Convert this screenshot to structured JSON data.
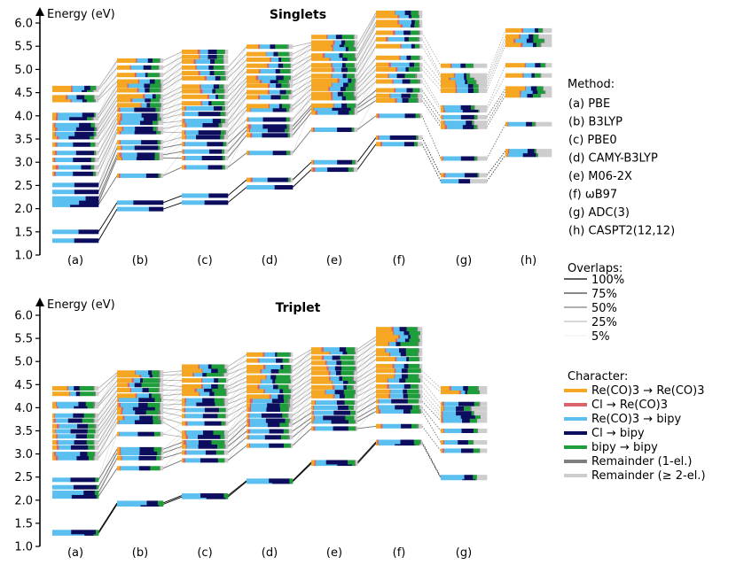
{
  "chart_data": [
    {
      "type": "bar",
      "title": "Singlets",
      "ylabel": "Energy (eV)",
      "ylim": [
        1.0,
        6.2
      ],
      "yticks": [
        "1.0",
        "1.5",
        "2.0",
        "2.5",
        "3.0",
        "3.5",
        "4.0",
        "4.5",
        "5.0",
        "5.5",
        "6.0"
      ],
      "categories": [
        "(a)",
        "(b)",
        "(c)",
        "(d)",
        "(e)",
        "(f)",
        "(g)",
        "(h)"
      ],
      "states": [
        [
          1.31,
          1.5,
          2.08,
          2.13,
          2.22,
          2.36,
          2.51,
          2.75,
          2.89,
          3.05,
          3.2,
          3.38,
          3.54,
          3.61,
          3.72,
          3.8,
          3.95,
          4.02,
          4.34,
          4.4,
          4.56,
          4.6
        ],
        [
          1.99,
          2.13,
          2.71,
          3.09,
          3.16,
          3.31,
          3.43,
          3.65,
          3.72,
          3.85,
          3.94,
          4.01,
          4.13,
          4.23,
          4.34,
          4.42,
          4.55,
          4.65,
          4.74,
          4.88,
          5.04,
          5.19
        ],
        [
          2.13,
          2.28,
          2.89,
          3.09,
          3.23,
          3.39,
          3.54,
          3.64,
          3.8,
          3.89,
          4.04,
          4.16,
          4.27,
          4.41,
          4.53,
          4.63,
          4.81,
          4.92,
          5.04,
          5.17,
          5.27,
          5.38
        ],
        [
          2.46,
          2.62,
          3.2,
          3.58,
          3.69,
          3.77,
          3.92,
          4.13,
          4.21,
          4.4,
          4.51,
          4.65,
          4.75,
          4.82,
          4.96,
          5.08,
          5.21,
          5.33,
          5.49
        ],
        [
          2.84,
          3.0,
          3.7,
          4.07,
          4.16,
          4.22,
          4.38,
          4.47,
          4.58,
          4.67,
          4.76,
          4.86,
          4.99,
          5.09,
          5.23,
          5.3,
          5.44,
          5.53,
          5.58,
          5.7
        ],
        [
          3.39,
          3.53,
          4.0,
          4.33,
          4.43,
          4.55,
          4.74,
          4.86,
          5.0,
          5.1,
          5.25,
          5.5,
          5.65,
          5.79,
          5.95,
          6.02,
          6.15,
          6.22
        ],
        [
          2.59,
          2.72,
          3.08,
          3.76,
          3.85,
          3.97,
          4.12,
          4.18,
          4.54,
          4.64,
          4.73,
          4.82,
          4.87,
          5.08
        ],
        [
          3.16,
          3.24,
          3.82,
          4.44,
          4.52,
          4.59,
          4.87,
          5.09,
          5.53,
          5.62,
          5.71,
          5.84
        ]
      ]
    },
    {
      "type": "bar",
      "title": "Triplet",
      "ylabel": "Energy (eV)",
      "ylim": [
        1.0,
        6.2
      ],
      "yticks": [
        "1.0",
        "1.5",
        "2.0",
        "2.5",
        "3.0",
        "3.5",
        "4.0",
        "4.5",
        "5.0",
        "5.5",
        "6.0"
      ],
      "categories": [
        "(a)",
        "(b)",
        "(c)",
        "(d)",
        "(e)",
        "(f)",
        "(g)"
      ],
      "states": [
        [
          1.28,
          1.31,
          2.08,
          2.16,
          2.28,
          2.44,
          2.91,
          3.0,
          3.14,
          3.25,
          3.38,
          3.49,
          3.6,
          3.72,
          3.83,
          4.03,
          4.08,
          4.3,
          4.42
        ],
        [
          1.91,
          1.94,
          2.69,
          2.91,
          3.02,
          3.1,
          3.43,
          3.69,
          3.78,
          3.9,
          3.99,
          4.06,
          4.17,
          4.26,
          4.38,
          4.49,
          4.59,
          4.7,
          4.76
        ],
        [
          2.07,
          2.1,
          2.86,
          3.03,
          3.16,
          3.25,
          3.37,
          3.46,
          3.66,
          3.82,
          3.95,
          4.08,
          4.16,
          4.3,
          4.39,
          4.46,
          4.59,
          4.72,
          4.8,
          4.89
        ],
        [
          2.4,
          2.42,
          3.18,
          3.36,
          3.49,
          3.63,
          3.72,
          3.83,
          3.96,
          4.05,
          4.15,
          4.24,
          4.36,
          4.45,
          4.57,
          4.66,
          4.79,
          4.88,
          5.02,
          5.15
        ],
        [
          2.79,
          2.82,
          3.55,
          3.7,
          3.78,
          3.89,
          4.0,
          4.11,
          4.25,
          4.34,
          4.44,
          4.56,
          4.63,
          4.75,
          4.85,
          4.97,
          5.08,
          5.2,
          5.26
        ],
        [
          3.23,
          3.26,
          3.6,
          3.92,
          4.01,
          4.14,
          4.25,
          4.35,
          4.46,
          4.59,
          4.68,
          4.8,
          4.9,
          5.05,
          5.16,
          5.24,
          5.38,
          5.47,
          5.54,
          5.62,
          5.7
        ],
        [
          2.48,
          2.5,
          3.07,
          3.25,
          3.5,
          3.72,
          3.81,
          3.88,
          3.98,
          4.08,
          4.34,
          4.42
        ]
      ]
    }
  ],
  "legend": {
    "method_header": "Method:",
    "methods": [
      "(a) PBE",
      "(b) B3LYP",
      "(c) PBE0",
      "(d) CAMY-B3LYP",
      "(e) M06-2X",
      "(f) ωB97",
      "(g) ADC(3)",
      "(h) CASPT2(12,12)"
    ],
    "overlaps_header": "Overlaps:",
    "overlaps": [
      {
        "label": "100%",
        "opacity": 1.0
      },
      {
        "label": "75%",
        "opacity": 0.75
      },
      {
        "label": "50%",
        "opacity": 0.5
      },
      {
        "label": "25%",
        "opacity": 0.25
      },
      {
        "label": "5%",
        "opacity": 0.05
      }
    ],
    "character_header": "Character:",
    "characters": [
      {
        "label": "Re(CO)3 → Re(CO)3",
        "color": "#F5A623"
      },
      {
        "label": "Cl → Re(CO)3",
        "color": "#D9626B"
      },
      {
        "label": "Re(CO)3 → bipy",
        "color": "#5BC0F0"
      },
      {
        "label": "Cl → bipy",
        "color": "#0D0D5E"
      },
      {
        "label": "bipy → bipy",
        "color": "#1E9E3A"
      },
      {
        "label": "Remainder (1-el.)",
        "color": "#7F7F7F"
      },
      {
        "label": "Remainder (≥ 2-el.)",
        "color": "#CDCDCD"
      }
    ]
  }
}
